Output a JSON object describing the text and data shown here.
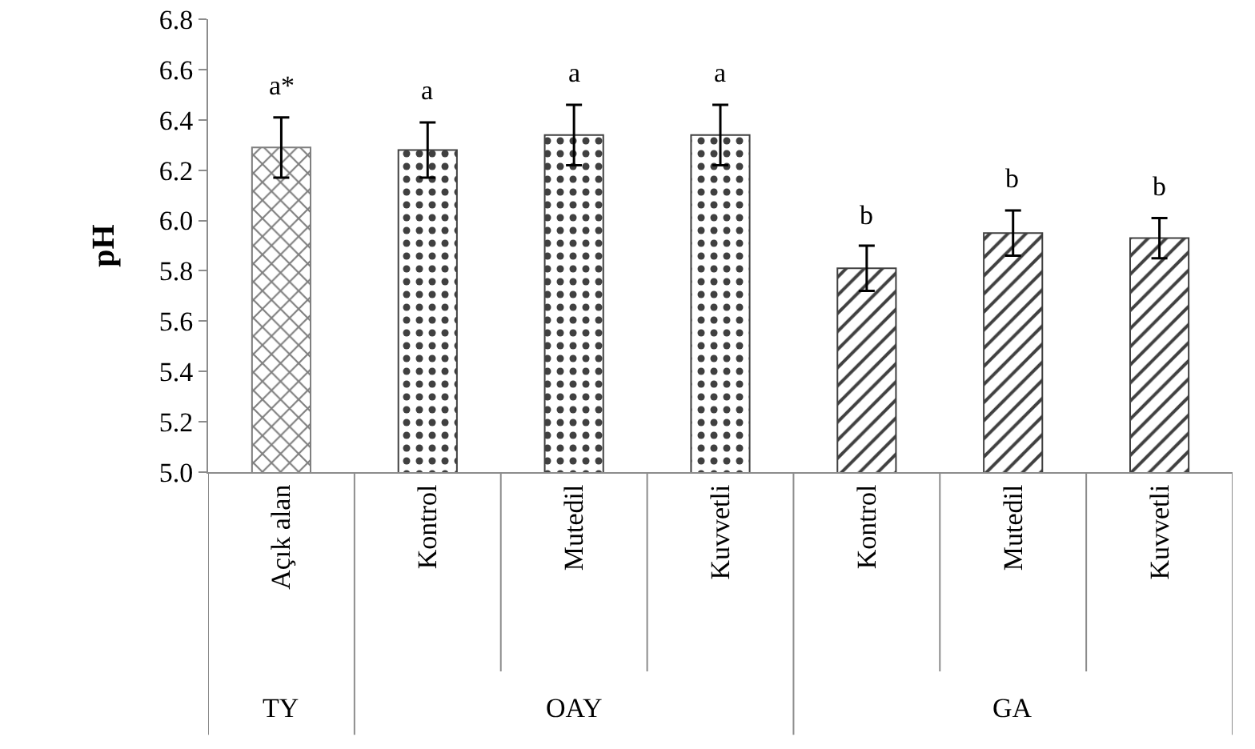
{
  "chart_data": {
    "type": "bar",
    "ylabel": "pH",
    "categories": [
      "Açık alan",
      "Kontrol",
      "Mutedil",
      "Kuvvetli",
      "Kontrol",
      "Mutedil",
      "Kuvvetli"
    ],
    "series": [
      {
        "color": "#7f7f7f",
        "values": [
          6.29,
          null,
          null,
          null,
          null,
          null,
          null
        ],
        "errors": [
          0.12,
          null,
          null,
          null,
          null,
          null,
          null
        ],
        "value_labels": [
          "a*",
          null,
          null,
          null,
          null,
          null,
          null
        ]
      },
      {
        "color": "#404040",
        "values": [
          null,
          6.28,
          6.34,
          6.34,
          null,
          null,
          null
        ],
        "errors": [
          null,
          0.11,
          0.12,
          0.12,
          null,
          null,
          null
        ],
        "value_labels": [
          null,
          "a",
          "a",
          "a",
          null,
          null,
          null
        ]
      },
      {
        "color": "#404040",
        "values": [
          null,
          null,
          null,
          null,
          5.81,
          5.95,
          5.93
        ],
        "errors": [
          null,
          null,
          null,
          null,
          0.09,
          0.09,
          0.08
        ],
        "value_labels": [
          null,
          null,
          null,
          null,
          "b",
          "b",
          "b"
        ]
      }
    ],
    "annotations": [
      "TY",
      "OAY",
      "GA"
    ],
    "ylim": [
      5.0,
      6.8
    ],
    "yticks": [
      {
        "value": 5.0,
        "label": "5.0"
      },
      5.2,
      5.4,
      5.6,
      5.8,
      {
        "value": 6.0,
        "label": "6.0"
      },
      6.2,
      6.4,
      6.6,
      6.8
    ],
    "grid": false
  }
}
